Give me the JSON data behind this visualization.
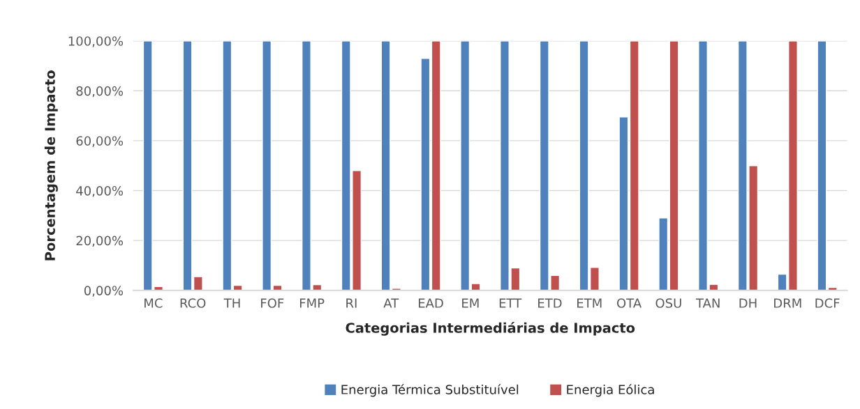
{
  "chart_data": {
    "type": "bar",
    "xlabel": "Categorias Intermediárias de Impacto",
    "ylabel": "Porcentagem de Impacto",
    "categories": [
      "MC",
      "RCO",
      "TH",
      "FOF",
      "FMP",
      "RI",
      "AT",
      "EAD",
      "EM",
      "ETT",
      "ETD",
      "ETM",
      "OTA",
      "OSU",
      "TAN",
      "DH",
      "DRM",
      "DCF"
    ],
    "series": [
      {
        "name": "Energia Térmica Substituível",
        "color": "#4f81bd",
        "values": [
          100,
          100,
          100,
          100,
          100,
          100,
          100,
          93,
          100,
          100,
          100,
          100,
          69.5,
          29,
          100,
          100,
          6.5,
          100
        ]
      },
      {
        "name": "Energia Eólica",
        "color": "#c0504d",
        "values": [
          1.5,
          5.5,
          2,
          2,
          2.3,
          48,
          0.8,
          100,
          2.7,
          9,
          6,
          9.2,
          100,
          100,
          2.4,
          50,
          100,
          1.2
        ]
      }
    ],
    "ylim": [
      0,
      100
    ],
    "yticks": [
      {
        "value": 0,
        "label": "0,00%"
      },
      {
        "value": 20,
        "label": "20,00%"
      },
      {
        "value": 40,
        "label": "40,00%"
      },
      {
        "value": 60,
        "label": "60,00%"
      },
      {
        "value": 80,
        "label": "80,00%"
      },
      {
        "value": 100,
        "label": "100,00%"
      }
    ],
    "grid": "y",
    "legend": "bottom"
  }
}
